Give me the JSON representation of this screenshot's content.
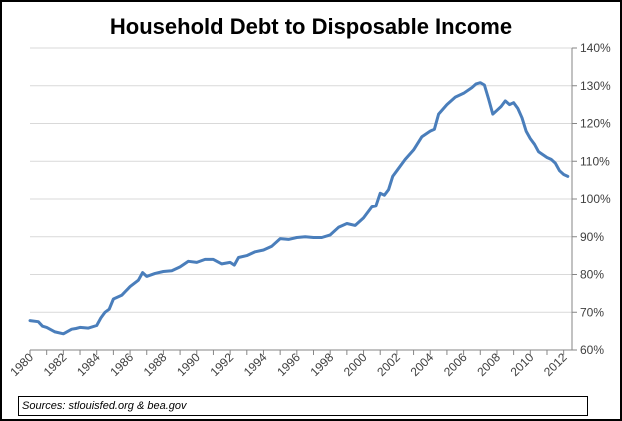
{
  "chart_data": {
    "type": "line",
    "title": "Household Debt to Disposable Income",
    "source": "Sources: stlouisfed.org & bea.gov",
    "x_tick_labels": [
      "1980",
      "1982",
      "1984",
      "1986",
      "1988",
      "1990",
      "1992",
      "1994",
      "1996",
      "1998",
      "2000",
      "2002",
      "2004",
      "2006",
      "2008",
      "2010",
      "2012"
    ],
    "y_tick_labels": [
      "60%",
      "70%",
      "80%",
      "90%",
      "100%",
      "110%",
      "120%",
      "130%",
      "140%"
    ],
    "xlim": [
      1980,
      2012.5
    ],
    "ylim": [
      60,
      140
    ],
    "y_axis_side": "right",
    "grid": "horizontal",
    "legend": "none",
    "line_color": "#4a7ebb",
    "series": [
      {
        "x": [
          1980.0,
          1980.5,
          1980.75,
          1981.0,
          1981.5,
          1982.0,
          1982.5,
          1982.75,
          1983.0,
          1983.5,
          1984.0,
          1984.25,
          1984.5,
          1984.75,
          1985.0,
          1985.5,
          1986.0,
          1986.5,
          1986.75,
          1987.0,
          1987.5,
          1988.0,
          1988.5,
          1989.0,
          1989.5,
          1990.0,
          1990.5,
          1991.0,
          1991.5,
          1992.0,
          1992.25,
          1992.5,
          1993.0,
          1993.5,
          1994.0,
          1994.5,
          1995.0,
          1995.5,
          1996.0,
          1996.5,
          1997.0,
          1997.5,
          1998.0,
          1998.5,
          1999.0,
          1999.5,
          2000.0,
          2000.5,
          2000.75,
          2001.0,
          2001.25,
          2001.5,
          2001.75,
          2002.0,
          2002.5,
          2003.0,
          2003.5,
          2004.0,
          2004.25,
          2004.5,
          2005.0,
          2005.5,
          2006.0,
          2006.5,
          2006.75,
          2007.0,
          2007.25,
          2007.5,
          2007.75,
          2008.0,
          2008.25,
          2008.5,
          2008.75,
          2009.0,
          2009.25,
          2009.5,
          2009.75,
          2010.0,
          2010.25,
          2010.5,
          2011.0,
          2011.25,
          2011.5,
          2011.75,
          2012.0,
          2012.25
        ],
        "y": [
          67.8,
          67.5,
          66.3,
          66.0,
          64.8,
          64.3,
          65.5,
          65.7,
          66.0,
          65.8,
          66.5,
          68.5,
          70.0,
          70.8,
          73.5,
          74.5,
          76.8,
          78.5,
          80.5,
          79.5,
          80.3,
          80.8,
          81.0,
          82.0,
          83.5,
          83.2,
          84.0,
          84.0,
          82.8,
          83.2,
          82.5,
          84.5,
          85.0,
          86.0,
          86.5,
          87.5,
          89.5,
          89.3,
          89.8,
          90.0,
          89.8,
          89.8,
          90.5,
          92.5,
          93.5,
          93.0,
          95.0,
          98.0,
          98.2,
          101.5,
          101.0,
          102.5,
          106.0,
          107.5,
          110.5,
          113.0,
          116.5,
          118.0,
          118.5,
          122.5,
          125.0,
          127.0,
          128.0,
          129.5,
          130.5,
          130.8,
          130.2,
          126.5,
          122.5,
          123.5,
          124.5,
          126.0,
          125.0,
          125.5,
          124.0,
          121.5,
          118.0,
          116.0,
          114.5,
          112.5,
          111.0,
          110.5,
          109.5,
          107.5,
          106.5,
          106.0
        ]
      }
    ]
  }
}
